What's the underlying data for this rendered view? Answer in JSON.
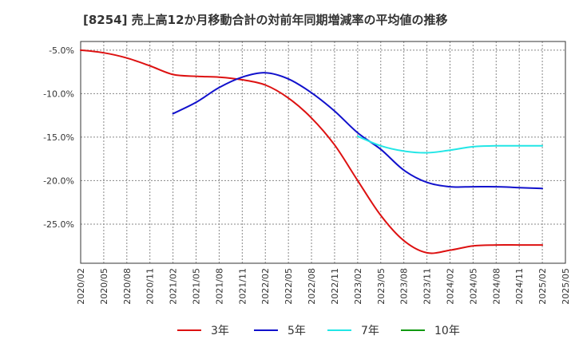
{
  "chart_data": {
    "type": "line",
    "title": "[8254]  売上高12か月移動合計の対前年同期増減率の平均値の推移",
    "xlabel": "",
    "ylabel": "",
    "x": [
      "2020/02",
      "2020/05",
      "2020/08",
      "2020/11",
      "2021/02",
      "2021/05",
      "2021/08",
      "2021/11",
      "2022/02",
      "2022/05",
      "2022/08",
      "2022/11",
      "2023/02",
      "2023/05",
      "2023/08",
      "2023/11",
      "2024/02",
      "2024/05",
      "2024/08",
      "2024/11",
      "2025/02",
      "2025/05"
    ],
    "y_ticks": [
      "-5.0%",
      "-10.0%",
      "-15.0%",
      "-20.0%",
      "-25.0%"
    ],
    "ylim": [
      -29.5,
      -4.0
    ],
    "grid": true,
    "legend_position": "bottom",
    "series": [
      {
        "name": "3年",
        "color": "#dd1111",
        "values": [
          -5.0,
          -5.3,
          -5.9,
          -6.8,
          -7.8,
          -8.0,
          -8.1,
          -8.4,
          -9.0,
          -10.5,
          -12.8,
          -15.9,
          -20.0,
          -24.0,
          -26.9,
          -28.3,
          -28.0,
          -27.5,
          -27.4,
          -27.4,
          -27.4,
          null
        ]
      },
      {
        "name": "5年",
        "color": "#1111cc",
        "values": [
          null,
          null,
          null,
          null,
          -12.3,
          -11.0,
          -9.3,
          -8.1,
          -7.6,
          -8.3,
          -9.9,
          -12.0,
          -14.5,
          -16.4,
          -18.8,
          -20.2,
          -20.7,
          -20.7,
          -20.7,
          -20.8,
          -20.9,
          null
        ]
      },
      {
        "name": "7年",
        "color": "#22e6e6",
        "values": [
          null,
          null,
          null,
          null,
          null,
          null,
          null,
          null,
          null,
          null,
          null,
          null,
          -14.9,
          -16.0,
          -16.6,
          -16.8,
          -16.5,
          -16.1,
          -16.0,
          -16.0,
          -16.0,
          null
        ]
      },
      {
        "name": "10年",
        "color": "#119911",
        "values": [
          null,
          null,
          null,
          null,
          null,
          null,
          null,
          null,
          null,
          null,
          null,
          null,
          null,
          null,
          null,
          null,
          null,
          null,
          null,
          null,
          null,
          null
        ]
      }
    ]
  }
}
